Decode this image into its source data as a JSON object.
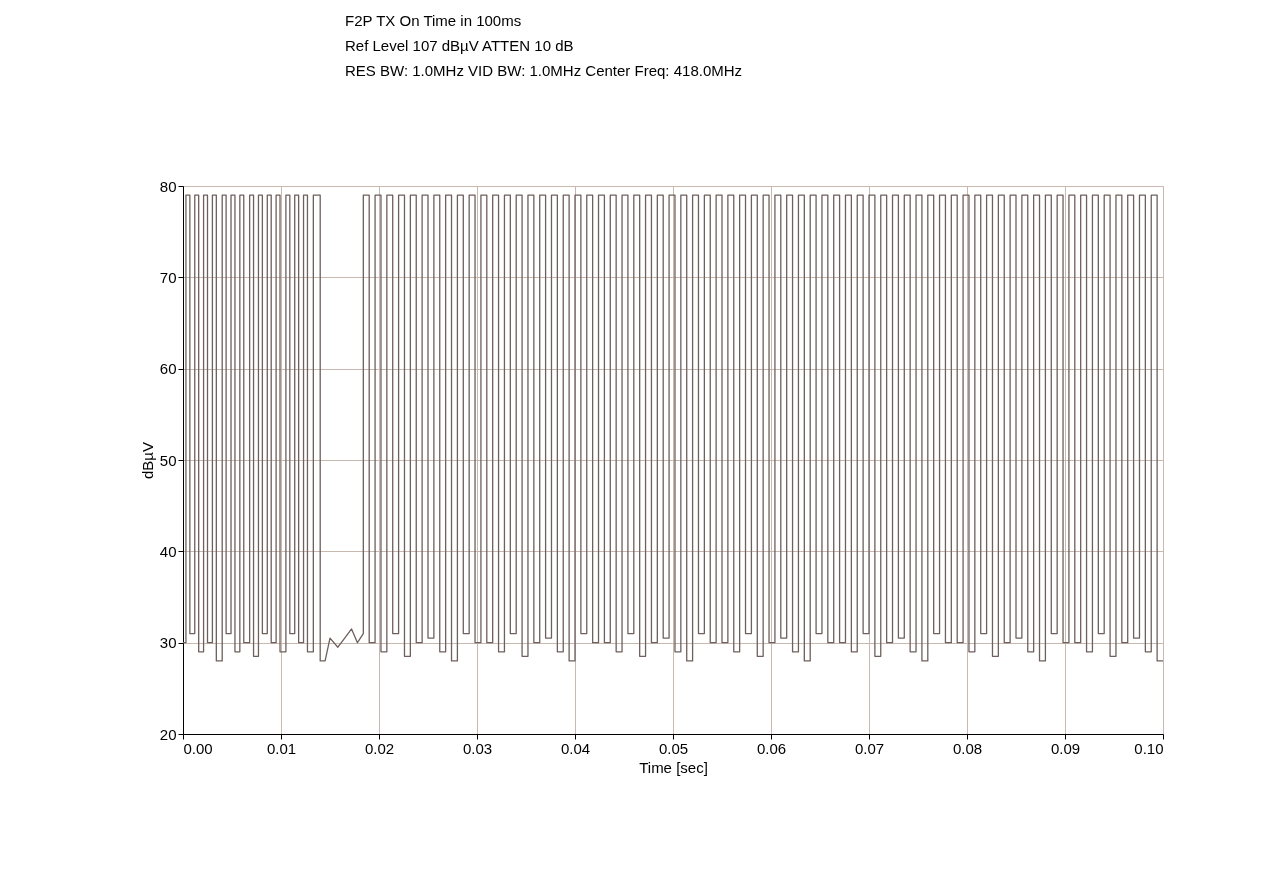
{
  "chart_data": {
    "type": "line",
    "xlabel": "Time [sec]",
    "ylabel": "dBµV",
    "annotations": [
      "F2P TX On Time in 100ms",
      "Ref Level 107 dBµV    ATTEN 10 dB",
      "RES BW: 1.0MHz  VID BW: 1.0MHz  Center Freq: 418.0MHz"
    ],
    "xlim": [
      0,
      0.1
    ],
    "xticks": [
      {
        "value": 0,
        "label": "0.00"
      },
      0.01,
      0.02,
      0.03,
      0.04,
      0.05,
      0.06,
      0.07,
      0.08,
      0.09,
      {
        "value": 0.1,
        "label": "0.10"
      }
    ],
    "ylim": [
      20,
      80
    ],
    "yticks": [
      20,
      30,
      40,
      50,
      60,
      70,
      80
    ],
    "grid": true,
    "series": [
      {
        "color": "#6e605c",
        "x": [
          0,
          0.0003,
          0.0003,
          0.0007,
          0.0007,
          0.0012,
          0.0012,
          0.0016,
          0.0016,
          0.0021,
          0.0021,
          0.0025,
          0.0025,
          0.003,
          0.003,
          0.0034,
          0.0034,
          0.004,
          0.004,
          0.0044,
          0.0044,
          0.0049,
          0.0049,
          0.0053,
          0.0053,
          0.0058,
          0.0058,
          0.0062,
          0.0062,
          0.0068,
          0.0068,
          0.0072,
          0.0072,
          0.0077,
          0.0077,
          0.0081,
          0.0081,
          0.0086,
          0.0086,
          0.009,
          0.009,
          0.0095,
          0.0095,
          0.0099,
          0.0099,
          0.0105,
          0.0105,
          0.0109,
          0.0109,
          0.0114,
          0.0114,
          0.0118,
          0.0118,
          0.0123,
          0.0123,
          0.0127,
          0.0127,
          0.0133,
          0.0133,
          0.014,
          0.014,
          0.0145,
          0.015,
          0.0158,
          0.0165,
          0.0172,
          0.0178,
          0.0184,
          0.0184,
          0.019,
          0.019,
          0.0196,
          0.0196,
          0.0202,
          0.0202,
          0.0208,
          0.0208,
          0.0214,
          0.0214,
          0.022,
          0.022,
          0.0226,
          0.0226,
          0.0232,
          0.0232,
          0.0238,
          0.0238,
          0.0244,
          0.0244,
          0.025,
          0.025,
          0.0256,
          0.0256,
          0.0262,
          0.0262,
          0.0268,
          0.0268,
          0.0274,
          0.0274,
          0.028,
          0.028,
          0.0286,
          0.0286,
          0.0292,
          0.0292,
          0.0298,
          0.0298,
          0.0304,
          0.0304,
          0.031,
          0.031,
          0.0316,
          0.0316,
          0.0322,
          0.0322,
          0.0328,
          0.0328,
          0.0334,
          0.0334,
          0.034,
          0.034,
          0.0346,
          0.0346,
          0.0352,
          0.0352,
          0.0358,
          0.0358,
          0.0364,
          0.0364,
          0.037,
          0.037,
          0.0376,
          0.0376,
          0.0382,
          0.0382,
          0.0388,
          0.0388,
          0.0394,
          0.0394,
          0.04,
          0.04,
          0.0406,
          0.0406,
          0.0412,
          0.0412,
          0.0418,
          0.0418,
          0.0424,
          0.0424,
          0.043,
          0.043,
          0.0436,
          0.0436,
          0.0442,
          0.0442,
          0.0448,
          0.0448,
          0.0454,
          0.0454,
          0.046,
          0.046,
          0.0466,
          0.0466,
          0.0472,
          0.0472,
          0.0478,
          0.0478,
          0.0484,
          0.0484,
          0.049,
          0.049,
          0.0496,
          0.0496,
          0.0502,
          0.0502,
          0.0508,
          0.0508,
          0.0514,
          0.0514,
          0.052,
          0.052,
          0.0526,
          0.0526,
          0.0532,
          0.0532,
          0.0538,
          0.0538,
          0.0544,
          0.0544,
          0.055,
          0.055,
          0.0556,
          0.0556,
          0.0562,
          0.0562,
          0.0568,
          0.0568,
          0.0574,
          0.0574,
          0.058,
          0.058,
          0.0586,
          0.0586,
          0.0592,
          0.0592,
          0.0598,
          0.0598,
          0.0604,
          0.0604,
          0.061,
          0.061,
          0.0616,
          0.0616,
          0.0622,
          0.0622,
          0.0628,
          0.0628,
          0.0634,
          0.0634,
          0.064,
          0.064,
          0.0646,
          0.0646,
          0.0652,
          0.0652,
          0.0658,
          0.0658,
          0.0664,
          0.0664,
          0.067,
          0.067,
          0.0676,
          0.0676,
          0.0682,
          0.0682,
          0.0688,
          0.0688,
          0.0694,
          0.0694,
          0.07,
          0.07,
          0.0706,
          0.0706,
          0.0712,
          0.0712,
          0.0718,
          0.0718,
          0.0724,
          0.0724,
          0.073,
          0.073,
          0.0736,
          0.0736,
          0.0742,
          0.0742,
          0.0748,
          0.0748,
          0.0754,
          0.0754,
          0.076,
          0.076,
          0.0766,
          0.0766,
          0.0772,
          0.0772,
          0.0778,
          0.0778,
          0.0784,
          0.0784,
          0.079,
          0.079,
          0.0796,
          0.0796,
          0.0802,
          0.0802,
          0.0808,
          0.0808,
          0.0814,
          0.0814,
          0.082,
          0.082,
          0.0826,
          0.0826,
          0.0832,
          0.0832,
          0.0838,
          0.0838,
          0.0844,
          0.0844,
          0.085,
          0.085,
          0.0856,
          0.0856,
          0.0862,
          0.0862,
          0.0868,
          0.0868,
          0.0874,
          0.0874,
          0.088,
          0.088,
          0.0886,
          0.0886,
          0.0892,
          0.0892,
          0.0898,
          0.0898,
          0.0904,
          0.0904,
          0.091,
          0.091,
          0.0916,
          0.0916,
          0.0922,
          0.0922,
          0.0928,
          0.0928,
          0.0934,
          0.0934,
          0.094,
          0.094,
          0.0946,
          0.0946,
          0.0952,
          0.0952,
          0.0958,
          0.0958,
          0.0964,
          0.0964,
          0.097,
          0.097,
          0.0976,
          0.0976,
          0.0982,
          0.0982,
          0.0988,
          0.0988,
          0.0994,
          0.0994,
          0.1
        ],
        "values": [
          30,
          30,
          79,
          79,
          31,
          31,
          79,
          79,
          29,
          29,
          79,
          79,
          30,
          30,
          79,
          79,
          28,
          28,
          79,
          79,
          31,
          31,
          79,
          79,
          29,
          29,
          79,
          79,
          30,
          30,
          79,
          79,
          28.5,
          28.5,
          79,
          79,
          31,
          31,
          79,
          79,
          30,
          30,
          79,
          79,
          29,
          29,
          79,
          79,
          31,
          31,
          79,
          79,
          30,
          30,
          79,
          79,
          29,
          29,
          79,
          79,
          28,
          28,
          30.5,
          29.5,
          30.5,
          31.5,
          30,
          31,
          79,
          79,
          30,
          30,
          79,
          79,
          29,
          29,
          79,
          79,
          31,
          31,
          79,
          79,
          28.5,
          28.5,
          79,
          79,
          30,
          30,
          79,
          79,
          30.5,
          30.5,
          79,
          79,
          29,
          29,
          79,
          79,
          28,
          28,
          79,
          79,
          31,
          31,
          79,
          79,
          30,
          30,
          79,
          79,
          30,
          30,
          79,
          79,
          29,
          29,
          79,
          79,
          31,
          31,
          79,
          79,
          28.5,
          28.5,
          79,
          79,
          30,
          30,
          79,
          79,
          30.5,
          30.5,
          79,
          79,
          29,
          29,
          79,
          79,
          28,
          28,
          79,
          79,
          31,
          31,
          79,
          79,
          30,
          30,
          79,
          79,
          30,
          30,
          79,
          79,
          29,
          29,
          79,
          79,
          31,
          31,
          79,
          79,
          28.5,
          28.5,
          79,
          79,
          30,
          30,
          79,
          79,
          30.5,
          30.5,
          79,
          79,
          29,
          29,
          79,
          79,
          28,
          28,
          79,
          79,
          31,
          31,
          79,
          79,
          30,
          30,
          79,
          79,
          30,
          30,
          79,
          79,
          29,
          29,
          79,
          79,
          31,
          31,
          79,
          79,
          28.5,
          28.5,
          79,
          79,
          30,
          30,
          79,
          79,
          30.5,
          30.5,
          79,
          79,
          29,
          29,
          79,
          79,
          28,
          28,
          79,
          79,
          31,
          31,
          79,
          79,
          30,
          30,
          79,
          79,
          30,
          30,
          79,
          79,
          29,
          29,
          79,
          79,
          31,
          31,
          79,
          79,
          28.5,
          28.5,
          79,
          79,
          30,
          30,
          79,
          79,
          30.5,
          30.5,
          79,
          79,
          29,
          29,
          79,
          79,
          28,
          28,
          79,
          79,
          31,
          31,
          79,
          79,
          30,
          30,
          79,
          79,
          30,
          30,
          79,
          79,
          29,
          29,
          79,
          79,
          31,
          31,
          79,
          79,
          28.5,
          28.5,
          79,
          79,
          30,
          30,
          79,
          79,
          30.5,
          30.5,
          79,
          79,
          29,
          29,
          79,
          79,
          28,
          28,
          79,
          79,
          31,
          31,
          79,
          79,
          30,
          30,
          79,
          79,
          30,
          30,
          79,
          79,
          29,
          29,
          79,
          79,
          31,
          31,
          79,
          79,
          28.5,
          28.5,
          79,
          79,
          30,
          30,
          79,
          79,
          30.5,
          30.5,
          79,
          79,
          29,
          29,
          79,
          79,
          28,
          28
        ]
      }
    ]
  }
}
